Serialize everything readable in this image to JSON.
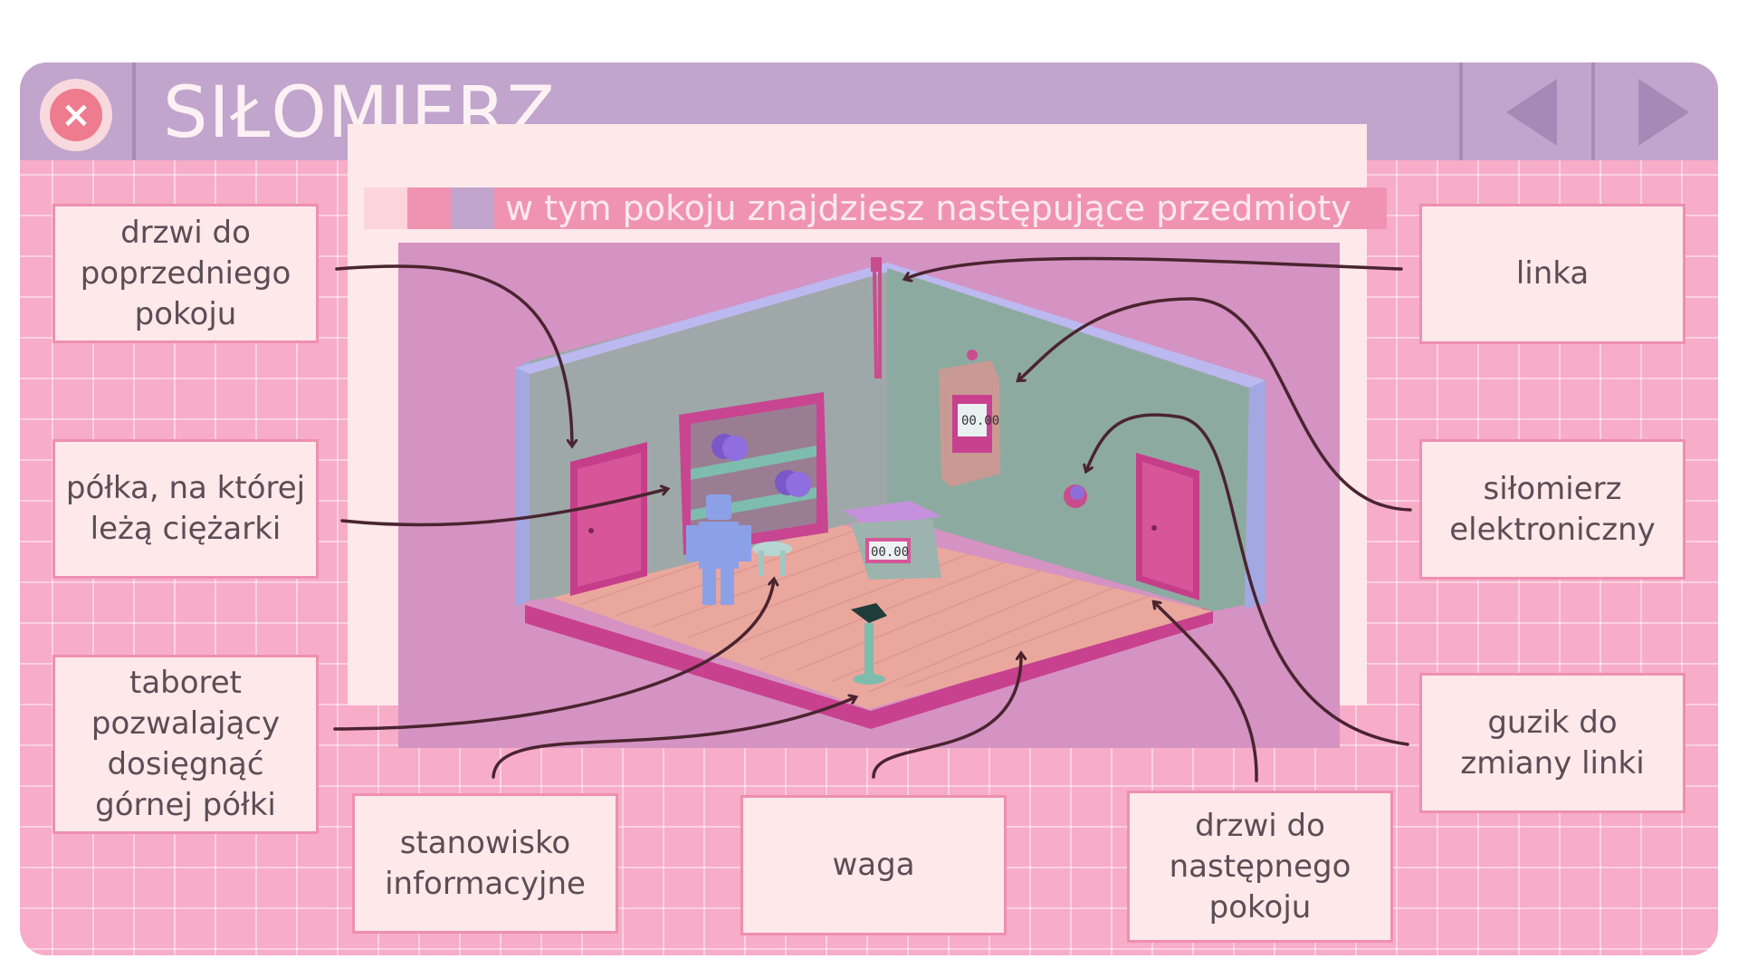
{
  "title": "SIŁOMIERZ",
  "subtitle": "w tym pokoju znajdziesz następujące przedmioty",
  "subtitle_swatches": [
    "#fbd5d9",
    "#f093b2",
    "#c1a5cd"
  ],
  "titlebar": {
    "close_icon": "close-icon",
    "prev_icon": "triangle-left-icon",
    "next_icon": "triangle-right-icon"
  },
  "scene": {
    "scale_display": "00.00",
    "dynamometer_display": "00.00"
  },
  "labels": {
    "prev_door": "drzwi do poprzedniego pokoju",
    "shelf": "półka, na której leżą ciężarki",
    "stool": "taboret pozwalający dosięgnąć górnej półki",
    "info_station": "stanowisko informacyjne",
    "scale": "waga",
    "next_door": "drzwi do następnego pokoju",
    "rope": "linka",
    "dynamometer": "siłomierz elektroniczny",
    "button": "guzik do zmiany linki"
  },
  "colors": {
    "background_pink": "#f7acc8",
    "titlebar_lilac": "#c1a5cd",
    "label_border": "#ee8fb1",
    "arrow": "#4a2430"
  }
}
